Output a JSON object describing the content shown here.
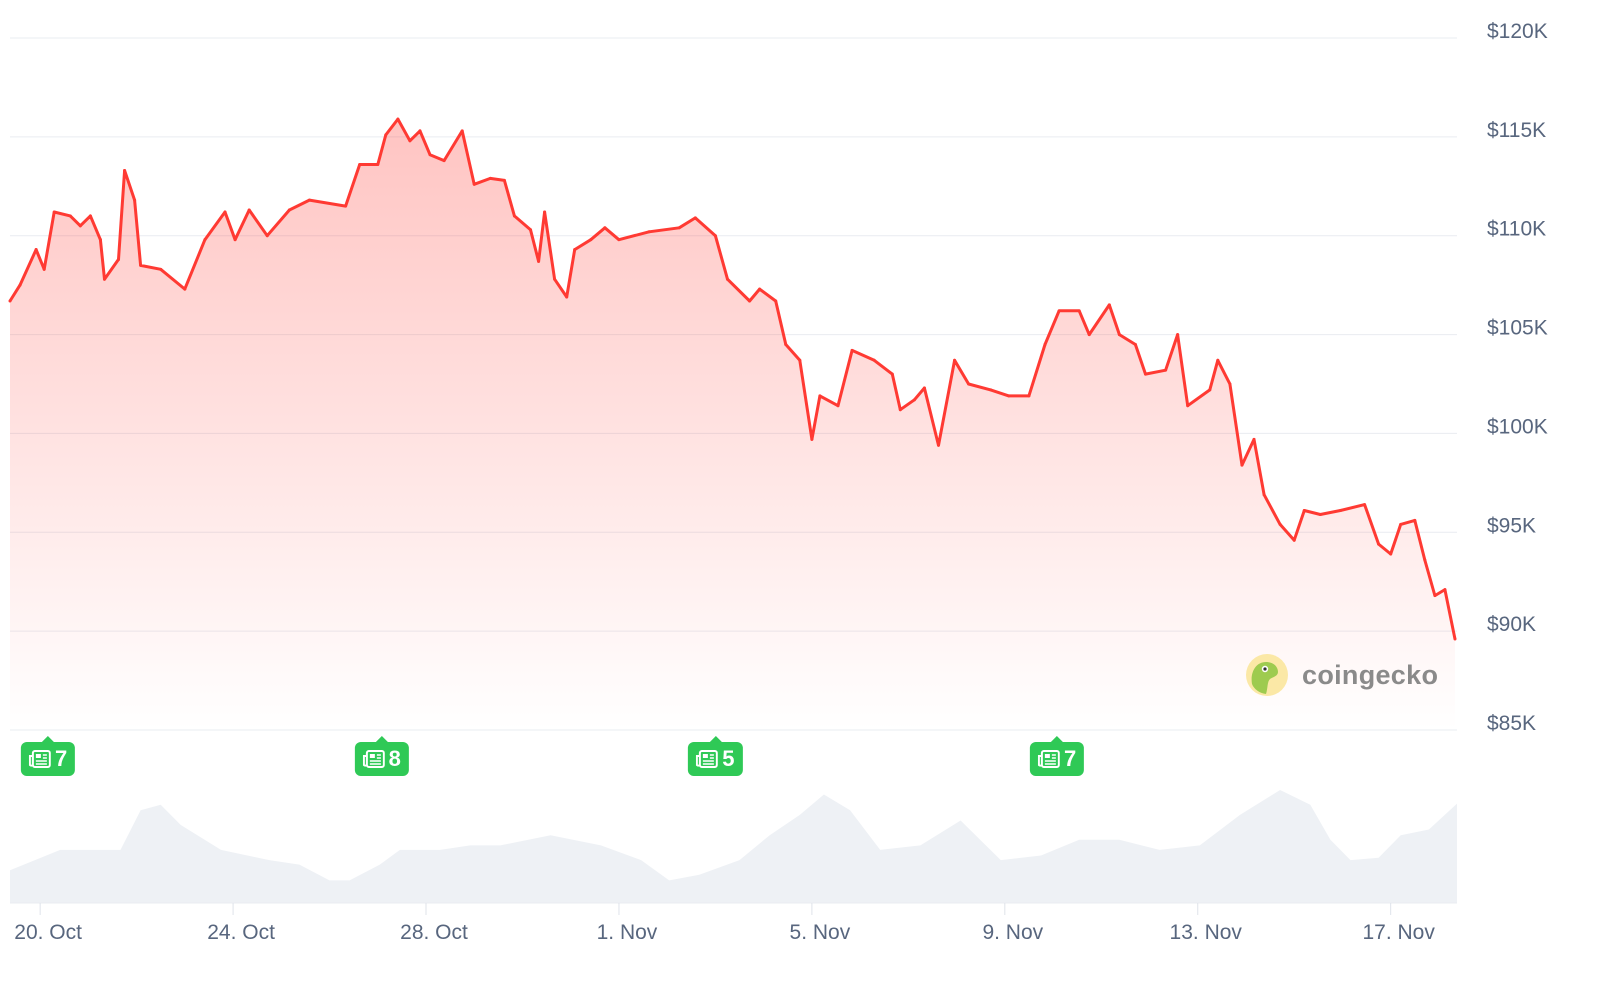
{
  "chart_data": {
    "type": "area",
    "title": "",
    "xlabel": "",
    "ylabel": "",
    "ylim": [
      85000,
      120000
    ],
    "y_ticks": [
      "$85K",
      "$90K",
      "$95K",
      "$100K",
      "$105K",
      "$110K",
      "$115K",
      "$120K"
    ],
    "y_tick_values": [
      85000,
      90000,
      95000,
      100000,
      105000,
      110000,
      115000,
      120000
    ],
    "x_ticks": [
      "20. Oct",
      "24. Oct",
      "28. Oct",
      "1. Nov",
      "5. Nov",
      "9. Nov",
      "13. Nov",
      "17. Nov"
    ],
    "x_tick_dates": [
      "10-20 00:00",
      "10-24 00:00",
      "10-28 00:00",
      "11-01 00:00",
      "11-05 00:00",
      "11-09 00:00",
      "11-13 00:00",
      "11-17 00:00"
    ],
    "x_range": [
      "10-19 09:00",
      "11-18 09:00"
    ],
    "grid": true,
    "y_axis_position": "right",
    "colors": {
      "line": "#ff3a33",
      "fill": "#ff3a33",
      "grid": "#e9ecf1",
      "volume": "#eef1f5",
      "badge": "#2fc956"
    },
    "series": [
      {
        "points": [
          [
            "10-19 09:00",
            106700
          ],
          [
            "10-19 14:00",
            107500
          ],
          [
            "10-19 22:00",
            109300
          ],
          [
            "10-20 02:00",
            108300
          ],
          [
            "10-20 07:00",
            111200
          ],
          [
            "10-20 15:00",
            111000
          ],
          [
            "10-20 20:00",
            110500
          ],
          [
            "10-21 01:00",
            111000
          ],
          [
            "10-21 06:00",
            109800
          ],
          [
            "10-21 08:00",
            107800
          ],
          [
            "10-21 15:00",
            108800
          ],
          [
            "10-21 18:00",
            113300
          ],
          [
            "10-21 23:00",
            111800
          ],
          [
            "10-22 02:00",
            108500
          ],
          [
            "10-22 12:00",
            108300
          ],
          [
            "10-23 00:00",
            107300
          ],
          [
            "10-23 10:00",
            109800
          ],
          [
            "10-23 20:00",
            111200
          ],
          [
            "10-24 01:00",
            109800
          ],
          [
            "10-24 08:00",
            111300
          ],
          [
            "10-24 17:00",
            110000
          ],
          [
            "10-25 04:00",
            111300
          ],
          [
            "10-25 14:00",
            111800
          ],
          [
            "10-26 08:00",
            111500
          ],
          [
            "10-26 15:00",
            113600
          ],
          [
            "10-27 00:00",
            113600
          ],
          [
            "10-27 04:00",
            115100
          ],
          [
            "10-27 10:00",
            115900
          ],
          [
            "10-27 16:00",
            114800
          ],
          [
            "10-27 21:00",
            115300
          ],
          [
            "10-28 02:00",
            114100
          ],
          [
            "10-28 09:00",
            113800
          ],
          [
            "10-28 18:00",
            115300
          ],
          [
            "10-29 00:00",
            112600
          ],
          [
            "10-29 08:00",
            112900
          ],
          [
            "10-29 15:00",
            112800
          ],
          [
            "10-29 20:00",
            111000
          ],
          [
            "10-30 04:00",
            110300
          ],
          [
            "10-30 08:00",
            108700
          ],
          [
            "10-30 11:00",
            111200
          ],
          [
            "10-30 16:00",
            107800
          ],
          [
            "10-30 22:00",
            106900
          ],
          [
            "10-31 02:00",
            109300
          ],
          [
            "10-31 10:00",
            109800
          ],
          [
            "10-31 17:00",
            110400
          ],
          [
            "11-01 00:00",
            109800
          ],
          [
            "11-01 15:00",
            110200
          ],
          [
            "11-02 06:00",
            110400
          ],
          [
            "11-02 14:00",
            110900
          ],
          [
            "11-03 00:00",
            110000
          ],
          [
            "11-03 06:00",
            107800
          ],
          [
            "11-03 17:00",
            106700
          ],
          [
            "11-03 22:00",
            107300
          ],
          [
            "11-04 06:00",
            106700
          ],
          [
            "11-04 11:00",
            104500
          ],
          [
            "11-04 18:00",
            103700
          ],
          [
            "11-05 00:00",
            99700
          ],
          [
            "11-05 04:00",
            101900
          ],
          [
            "11-05 13:00",
            101400
          ],
          [
            "11-05 20:00",
            104200
          ],
          [
            "11-06 07:00",
            103700
          ],
          [
            "11-06 16:00",
            103000
          ],
          [
            "11-06 20:00",
            101200
          ],
          [
            "11-07 03:00",
            101700
          ],
          [
            "11-07 08:00",
            102300
          ],
          [
            "11-07 15:00",
            99400
          ],
          [
            "11-07 23:00",
            103700
          ],
          [
            "11-08 06:00",
            102500
          ],
          [
            "11-08 17:00",
            102200
          ],
          [
            "11-09 02:00",
            101900
          ],
          [
            "11-09 12:00",
            101900
          ],
          [
            "11-09 20:00",
            104500
          ],
          [
            "11-10 03:00",
            106200
          ],
          [
            "11-10 13:00",
            106200
          ],
          [
            "11-10 18:00",
            105000
          ],
          [
            "11-11 04:00",
            106500
          ],
          [
            "11-11 09:00",
            105000
          ],
          [
            "11-11 17:00",
            104500
          ],
          [
            "11-11 22:00",
            103000
          ],
          [
            "11-12 08:00",
            103200
          ],
          [
            "11-12 14:00",
            105000
          ],
          [
            "11-12 19:00",
            101400
          ],
          [
            "11-13 06:00",
            102200
          ],
          [
            "11-13 10:00",
            103700
          ],
          [
            "11-13 16:00",
            102500
          ],
          [
            "11-13 22:00",
            98400
          ],
          [
            "11-14 04:00",
            99700
          ],
          [
            "11-14 09:00",
            96900
          ],
          [
            "11-14 17:00",
            95400
          ],
          [
            "11-15 00:00",
            94600
          ],
          [
            "11-15 05:00",
            96100
          ],
          [
            "11-15 13:00",
            95900
          ],
          [
            "11-15 23:00",
            96100
          ],
          [
            "11-16 11:00",
            96400
          ],
          [
            "11-16 18:00",
            94400
          ],
          [
            "11-17 00:00",
            93900
          ],
          [
            "11-17 05:00",
            95400
          ],
          [
            "11-17 12:00",
            95600
          ],
          [
            "11-17 17:00",
            93600
          ],
          [
            "11-17 22:00",
            91800
          ],
          [
            "11-18 03:00",
            92100
          ],
          [
            "11-18 08:00",
            89600
          ]
        ]
      }
    ],
    "volume_relative": [
      [
        "10-19 09:00",
        0.29
      ],
      [
        "10-20 10:00",
        0.47
      ],
      [
        "10-21 16:00",
        0.47
      ],
      [
        "10-22 02:00",
        0.82
      ],
      [
        "10-22 12:00",
        0.87
      ],
      [
        "10-22 22:00",
        0.69
      ],
      [
        "10-23 18:00",
        0.47
      ],
      [
        "10-24 18:00",
        0.38
      ],
      [
        "10-25 09:00",
        0.34
      ],
      [
        "10-26 00:00",
        0.2
      ],
      [
        "10-26 10:00",
        0.2
      ],
      [
        "10-27 01:00",
        0.34
      ],
      [
        "10-27 11:00",
        0.47
      ],
      [
        "10-28 07:00",
        0.47
      ],
      [
        "10-28 22:00",
        0.51
      ],
      [
        "10-29 13:00",
        0.51
      ],
      [
        "10-30 14:00",
        0.6
      ],
      [
        "10-31 15:00",
        0.51
      ],
      [
        "11-01 11:00",
        0.38
      ],
      [
        "11-02 01:00",
        0.2
      ],
      [
        "11-02 16:00",
        0.25
      ],
      [
        "11-03 12:00",
        0.38
      ],
      [
        "11-04 03:00",
        0.6
      ],
      [
        "11-04 18:00",
        0.78
      ],
      [
        "11-05 06:00",
        0.96
      ],
      [
        "11-05 19:00",
        0.82
      ],
      [
        "11-06 10:00",
        0.47
      ],
      [
        "11-07 06:00",
        0.51
      ],
      [
        "11-08 02:00",
        0.73
      ],
      [
        "11-08 22:00",
        0.38
      ],
      [
        "11-09 18:00",
        0.42
      ],
      [
        "11-10 13:00",
        0.56
      ],
      [
        "11-11 09:00",
        0.56
      ],
      [
        "11-12 05:00",
        0.47
      ],
      [
        "11-13 01:00",
        0.51
      ],
      [
        "11-13 21:00",
        0.78
      ],
      [
        "11-14 17:00",
        1.0
      ],
      [
        "11-15 08:00",
        0.87
      ],
      [
        "11-15 18:00",
        0.56
      ],
      [
        "11-16 04:00",
        0.38
      ],
      [
        "11-16 18:00",
        0.4
      ],
      [
        "11-17 05:00",
        0.6
      ],
      [
        "11-17 19:00",
        0.65
      ],
      [
        "11-18 09:00",
        0.88
      ]
    ]
  },
  "news_badges": [
    {
      "count": "7",
      "date": "10-20 04:00",
      "icon": "newspaper-icon"
    },
    {
      "count": "8",
      "date": "10-27 02:00",
      "icon": "newspaper-icon"
    },
    {
      "count": "5",
      "date": "11-03 00:00",
      "icon": "newspaper-icon"
    },
    {
      "count": "7",
      "date": "11-10 02:00",
      "icon": "newspaper-icon"
    }
  ],
  "watermark": {
    "text": "coingecko",
    "icon": "coingecko-gecko-icon"
  }
}
